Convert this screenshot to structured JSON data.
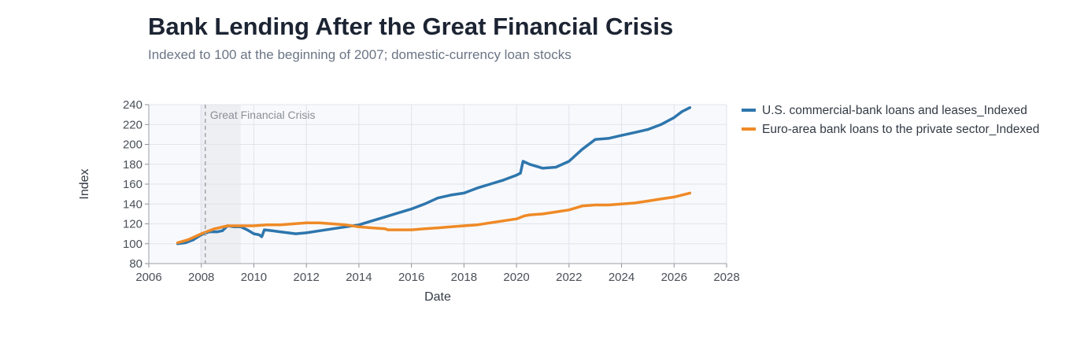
{
  "chart_data": {
    "type": "line",
    "title": "Bank Lending After the Great Financial Crisis",
    "subtitle": "Indexed to 100 at the beginning of 2007; domestic-currency loan stocks",
    "xlabel": "Date",
    "ylabel": "Index",
    "xlim": [
      2006,
      2028
    ],
    "ylim": [
      80,
      240
    ],
    "xticks": [
      2006,
      2008,
      2010,
      2012,
      2014,
      2016,
      2018,
      2020,
      2022,
      2024,
      2026,
      2028
    ],
    "yticks": [
      80,
      100,
      120,
      140,
      160,
      180,
      200,
      220,
      240
    ],
    "grid": true,
    "legend_position": "right",
    "annotation": {
      "label": "Great Financial Crisis",
      "shaded_range": [
        2007.95,
        2009.5
      ],
      "line_x": 2008.15
    },
    "series": [
      {
        "name": "U.S. commercial-bank loans and leases_Indexed",
        "color": "#2e76ad",
        "points": [
          [
            2007.1,
            100
          ],
          [
            2007.4,
            101
          ],
          [
            2007.7,
            104
          ],
          [
            2008.0,
            109
          ],
          [
            2008.3,
            112
          ],
          [
            2008.6,
            112
          ],
          [
            2008.8,
            113
          ],
          [
            2009.0,
            118
          ],
          [
            2009.25,
            117
          ],
          [
            2009.5,
            117
          ],
          [
            2009.75,
            114
          ],
          [
            2010.0,
            110
          ],
          [
            2010.2,
            109
          ],
          [
            2010.3,
            107
          ],
          [
            2010.4,
            114
          ],
          [
            2010.7,
            113
          ],
          [
            2011.0,
            112
          ],
          [
            2011.3,
            111
          ],
          [
            2011.6,
            110
          ],
          [
            2012.0,
            111
          ],
          [
            2012.5,
            113
          ],
          [
            2013.0,
            115
          ],
          [
            2013.5,
            117
          ],
          [
            2014.0,
            119
          ],
          [
            2014.5,
            123
          ],
          [
            2015.0,
            127
          ],
          [
            2015.5,
            131
          ],
          [
            2016.0,
            135
          ],
          [
            2016.5,
            140
          ],
          [
            2017.0,
            146
          ],
          [
            2017.5,
            149
          ],
          [
            2018.0,
            151
          ],
          [
            2018.5,
            156
          ],
          [
            2019.0,
            160
          ],
          [
            2019.5,
            164
          ],
          [
            2020.0,
            169
          ],
          [
            2020.15,
            171
          ],
          [
            2020.25,
            183
          ],
          [
            2020.5,
            180
          ],
          [
            2021.0,
            176
          ],
          [
            2021.5,
            177
          ],
          [
            2022.0,
            183
          ],
          [
            2022.5,
            195
          ],
          [
            2023.0,
            205
          ],
          [
            2023.5,
            206
          ],
          [
            2024.0,
            209
          ],
          [
            2024.5,
            212
          ],
          [
            2025.0,
            215
          ],
          [
            2025.5,
            220
          ],
          [
            2026.0,
            227
          ],
          [
            2026.3,
            233
          ],
          [
            2026.6,
            237
          ]
        ]
      },
      {
        "name": "Euro-area bank loans to the private sector_Indexed",
        "color": "#ef8a26",
        "points": [
          [
            2007.1,
            101
          ],
          [
            2007.5,
            104
          ],
          [
            2008.0,
            110
          ],
          [
            2008.5,
            115
          ],
          [
            2009.0,
            118
          ],
          [
            2009.5,
            118
          ],
          [
            2010.0,
            118
          ],
          [
            2010.5,
            119
          ],
          [
            2011.0,
            119
          ],
          [
            2011.5,
            120
          ],
          [
            2012.0,
            121
          ],
          [
            2012.5,
            121
          ],
          [
            2013.0,
            120
          ],
          [
            2013.5,
            119
          ],
          [
            2014.0,
            117
          ],
          [
            2014.5,
            116
          ],
          [
            2015.0,
            115
          ],
          [
            2015.1,
            114
          ],
          [
            2015.5,
            114
          ],
          [
            2016.0,
            114
          ],
          [
            2016.5,
            115
          ],
          [
            2017.0,
            116
          ],
          [
            2017.5,
            117
          ],
          [
            2018.0,
            118
          ],
          [
            2018.5,
            119
          ],
          [
            2019.0,
            121
          ],
          [
            2019.5,
            123
          ],
          [
            2020.0,
            125
          ],
          [
            2020.3,
            128
          ],
          [
            2020.5,
            129
          ],
          [
            2021.0,
            130
          ],
          [
            2021.5,
            132
          ],
          [
            2022.0,
            134
          ],
          [
            2022.5,
            138
          ],
          [
            2023.0,
            139
          ],
          [
            2023.5,
            139
          ],
          [
            2024.0,
            140
          ],
          [
            2024.5,
            141
          ],
          [
            2025.0,
            143
          ],
          [
            2025.5,
            145
          ],
          [
            2026.0,
            147
          ],
          [
            2026.6,
            151
          ]
        ]
      }
    ]
  }
}
